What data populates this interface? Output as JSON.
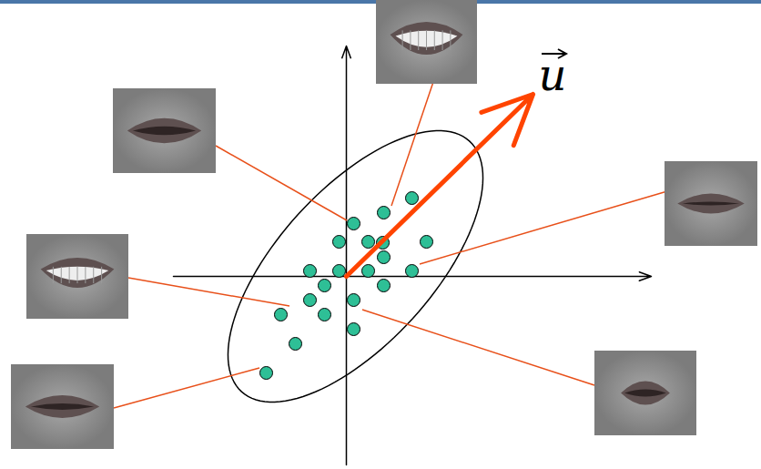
{
  "chart_data": {
    "type": "scatter",
    "x": [
      7.2,
      4.1,
      0.8,
      -0.8,
      2.4,
      4.0,
      8.8,
      4.1,
      -4.0,
      -0.8,
      2.4,
      7.2,
      -2.4,
      4.1,
      -4.0,
      0.8,
      -7.2,
      -2.4,
      0.8,
      -5.6,
      -8.8
    ],
    "y": [
      8.6,
      7.0,
      5.8,
      3.8,
      3.8,
      3.7,
      3.8,
      2.1,
      0.6,
      0.6,
      0.6,
      0.6,
      -1.0,
      -1.0,
      -2.6,
      -2.6,
      -4.2,
      -4.2,
      -5.8,
      -7.4,
      -10.6
    ],
    "color": "#2ebf96",
    "xlim": [
      -19,
      33.5
    ],
    "ylim": [
      -20.7,
      25.3
    ],
    "xticks": [],
    "yticks": [],
    "tick_labels": false,
    "grid": false,
    "ellipse": {
      "center": [
        1.0,
        1.1
      ],
      "major": 18.6,
      "minor": 8.5,
      "direction": [
        1,
        1.1
      ]
    },
    "vector": {
      "label": "u",
      "x": 20.5,
      "y": 20.0,
      "color": "#ff4400"
    }
  }
}
